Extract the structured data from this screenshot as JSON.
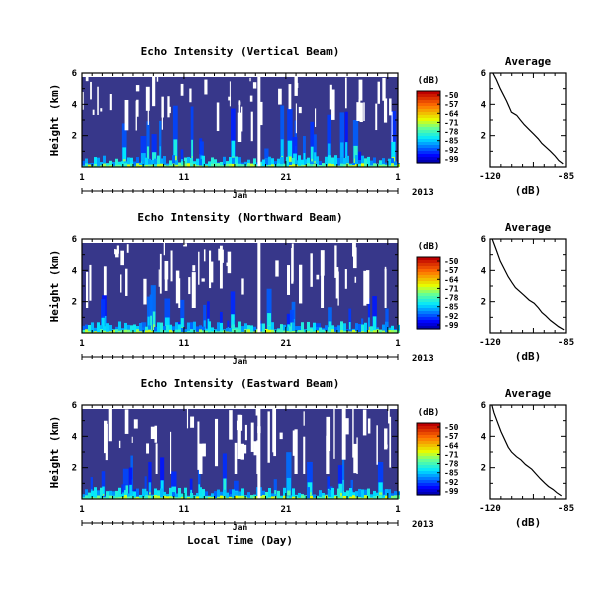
{
  "chart_data": [
    {
      "type": "heatmap",
      "title": "Echo Intensity (Vertical Beam)",
      "ylabel": "Height (km)",
      "yticks": [
        "6",
        "4",
        "2"
      ],
      "ylim": [
        0,
        6
      ],
      "xticks": [
        "1",
        "11",
        "21",
        "1"
      ],
      "xlim": [
        1,
        32
      ],
      "axis_month": "Jan",
      "axis_year": "2013",
      "colorbar": {
        "label": "(dB)",
        "ticks": [
          "-50",
          "-57",
          "-64",
          "-71",
          "-78",
          "-85",
          "-92",
          "-99"
        ],
        "range": [
          -99,
          -50
        ]
      },
      "profile": {
        "title": "Average",
        "xlabel": "(dB)",
        "xticks": [
          "-120",
          "-85"
        ],
        "xlim": [
          -120,
          -85
        ],
        "yticks": [
          "6",
          "4",
          "2"
        ],
        "ylim": [
          0,
          6
        ],
        "x": [
          -119,
          -117,
          -115,
          -112,
          -110,
          -108,
          -106,
          -104,
          -102,
          -100,
          -98,
          -96,
          -94,
          -92,
          -90,
          -88,
          -86
        ],
        "y": [
          6.0,
          5.6,
          5.0,
          4.2,
          3.5,
          3.3,
          3.0,
          2.7,
          2.4,
          2.1,
          1.8,
          1.5,
          1.2,
          1.0,
          0.7,
          0.4,
          0.2
        ]
      }
    },
    {
      "type": "heatmap",
      "title": "Echo Intensity (Northward Beam)",
      "ylabel": "Height (km)",
      "yticks": [
        "6",
        "4",
        "2"
      ],
      "ylim": [
        0,
        6
      ],
      "xticks": [
        "1",
        "11",
        "21",
        "1"
      ],
      "xlim": [
        1,
        32
      ],
      "axis_month": "Jan",
      "axis_year": "2013",
      "colorbar": {
        "label": "(dB)",
        "ticks": [
          "-50",
          "-57",
          "-64",
          "-71",
          "-78",
          "-85",
          "-92",
          "-99"
        ],
        "range": [
          -99,
          -50
        ]
      },
      "profile": {
        "title": "Average",
        "xlabel": "(dB)",
        "xticks": [
          "-120",
          "-85"
        ],
        "xlim": [
          -120,
          -85
        ],
        "yticks": [
          "6",
          "4",
          "2"
        ],
        "ylim": [
          0,
          6
        ],
        "x": [
          -119,
          -117,
          -115,
          -112,
          -110,
          -108,
          -106,
          -104,
          -102,
          -100,
          -98,
          -96,
          -94,
          -92,
          -90,
          -88,
          -86
        ],
        "y": [
          6.0,
          5.3,
          4.6,
          3.6,
          3.2,
          2.9,
          2.6,
          2.4,
          2.1,
          1.9,
          1.6,
          1.3,
          1.1,
          0.8,
          0.6,
          0.4,
          0.2
        ]
      }
    },
    {
      "type": "heatmap",
      "title": "Echo Intensity (Eastward Beam)",
      "ylabel": "Height (km)",
      "yticks": [
        "6",
        "4",
        "2"
      ],
      "ylim": [
        0,
        6
      ],
      "xticks": [
        "1",
        "11",
        "21",
        "1"
      ],
      "xlim": [
        1,
        32
      ],
      "axis_month": "Jan",
      "axis_year": "2013",
      "xlabel": "Local Time (Day)",
      "colorbar": {
        "label": "(dB)",
        "ticks": [
          "-50",
          "-57",
          "-64",
          "-71",
          "-78",
          "-85",
          "-92",
          "-99"
        ],
        "range": [
          -99,
          -50
        ]
      },
      "profile": {
        "title": "Average",
        "xlabel": "(dB)",
        "xticks": [
          "-120",
          "-85"
        ],
        "xlim": [
          -120,
          -85
        ],
        "yticks": [
          "6",
          "4",
          "2"
        ],
        "ylim": [
          0,
          6
        ],
        "x": [
          -119,
          -118,
          -117,
          -115,
          -112,
          -110,
          -108,
          -106,
          -104,
          -101,
          -99,
          -97,
          -95,
          -93,
          -91,
          -89,
          -87
        ],
        "y": [
          6.0,
          5.5,
          5.0,
          4.3,
          3.3,
          3.0,
          2.7,
          2.5,
          2.2,
          1.9,
          1.6,
          1.3,
          1.0,
          0.8,
          0.6,
          0.4,
          0.2
        ]
      }
    }
  ]
}
